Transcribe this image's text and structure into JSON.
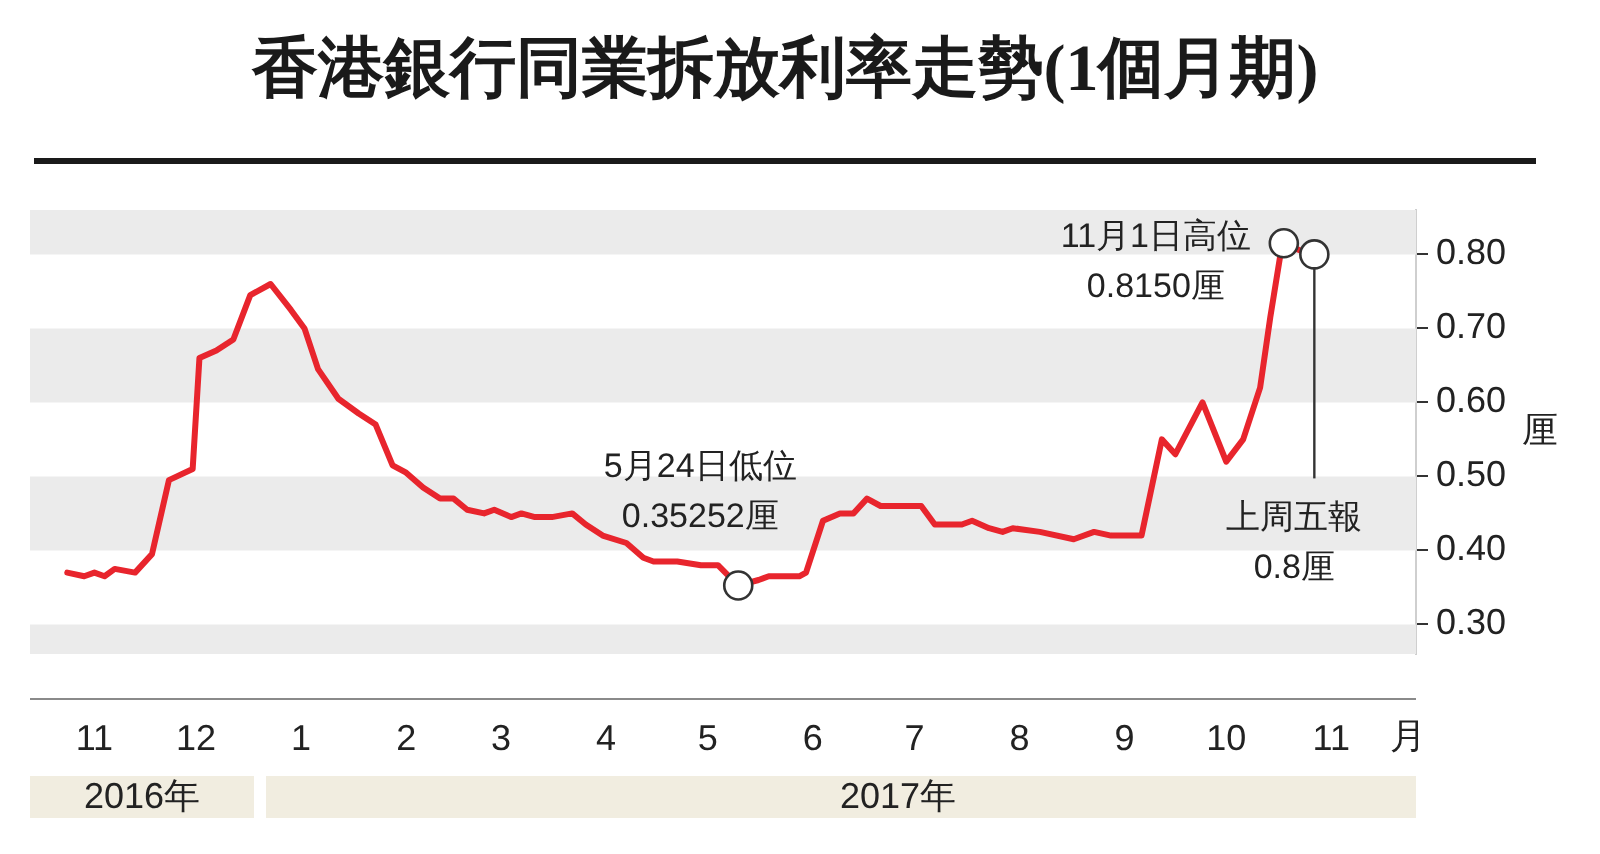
{
  "chart_data": {
    "type": "line",
    "title": "香港銀行同業拆放利率走勢(1個月期)",
    "xlabel": "月",
    "ylabel": "厘",
    "x": [
      "2016-11-07",
      "2016-11-12",
      "2016-11-15",
      "2016-11-18",
      "2016-11-21",
      "2016-11-27",
      "2016-12-02",
      "2016-12-07",
      "2016-12-14",
      "2016-12-16",
      "2016-12-21",
      "2016-12-26",
      "2016-12-31",
      "2017-01-06",
      "2017-01-12",
      "2017-01-16",
      "2017-01-20",
      "2017-01-26",
      "2017-02-01",
      "2017-02-06",
      "2017-02-11",
      "2017-02-15",
      "2017-02-20",
      "2017-02-25",
      "2017-03-01",
      "2017-03-05",
      "2017-03-10",
      "2017-03-13",
      "2017-03-18",
      "2017-03-21",
      "2017-03-25",
      "2017-03-30",
      "2017-04-05",
      "2017-04-09",
      "2017-04-14",
      "2017-04-21",
      "2017-04-26",
      "2017-04-29",
      "2017-05-06",
      "2017-05-13",
      "2017-05-18",
      "2017-05-24",
      "2017-05-26",
      "2017-05-30",
      "2017-06-02",
      "2017-06-11",
      "2017-06-13",
      "2017-06-18",
      "2017-06-23",
      "2017-06-27",
      "2017-07-01",
      "2017-07-05",
      "2017-07-17",
      "2017-07-21",
      "2017-07-29",
      "2017-08-01",
      "2017-08-06",
      "2017-08-10",
      "2017-08-13",
      "2017-08-21",
      "2017-08-31",
      "2017-09-06",
      "2017-09-11",
      "2017-09-20",
      "2017-09-26",
      "2017-09-30",
      "2017-10-08",
      "2017-10-15",
      "2017-10-20",
      "2017-10-25",
      "2017-10-28",
      "2017-10-31",
      "2017-11-01",
      "2017-11-06",
      "2017-11-10"
    ],
    "values": [
      0.37,
      0.365,
      0.37,
      0.365,
      0.375,
      0.37,
      0.395,
      0.495,
      0.51,
      0.66,
      0.67,
      0.685,
      0.745,
      0.76,
      0.725,
      0.7,
      0.645,
      0.605,
      0.585,
      0.57,
      0.515,
      0.505,
      0.485,
      0.47,
      0.47,
      0.455,
      0.45,
      0.455,
      0.445,
      0.45,
      0.445,
      0.445,
      0.45,
      0.435,
      0.42,
      0.41,
      0.39,
      0.385,
      0.385,
      0.38,
      0.38,
      0.35252,
      0.355,
      0.36,
      0.365,
      0.365,
      0.37,
      0.44,
      0.45,
      0.45,
      0.47,
      0.46,
      0.46,
      0.435,
      0.435,
      0.44,
      0.43,
      0.425,
      0.43,
      0.425,
      0.415,
      0.425,
      0.42,
      0.42,
      0.55,
      0.53,
      0.6,
      0.52,
      0.55,
      0.62,
      0.715,
      0.8,
      0.815,
      0.805,
      0.8
    ],
    "color": "#e8252d",
    "xlim": [
      "2016-10-27",
      "2017-12-10"
    ],
    "xticks": [
      {
        "value": "2016-11-15",
        "label": "11"
      },
      {
        "value": "2016-12-15",
        "label": "12"
      },
      {
        "value": "2017-01-15",
        "label": "1"
      },
      {
        "value": "2017-02-15",
        "label": "2"
      },
      {
        "value": "2017-03-15",
        "label": "3"
      },
      {
        "value": "2017-04-15",
        "label": "4"
      },
      {
        "value": "2017-05-15",
        "label": "5"
      },
      {
        "value": "2017-06-15",
        "label": "6"
      },
      {
        "value": "2017-07-15",
        "label": "7"
      },
      {
        "value": "2017-08-15",
        "label": "8"
      },
      {
        "value": "2017-09-15",
        "label": "9"
      },
      {
        "value": "2017-10-15",
        "label": "10"
      },
      {
        "value": "2017-11-15",
        "label": "11"
      }
    ],
    "ylim": [
      0.26,
      0.86
    ],
    "yticks": [
      {
        "value": 0.3,
        "label": "0.30"
      },
      {
        "value": 0.4,
        "label": "0.40"
      },
      {
        "value": 0.5,
        "label": "0.50"
      },
      {
        "value": 0.6,
        "label": "0.60"
      },
      {
        "value": 0.7,
        "label": "0.70"
      },
      {
        "value": 0.8,
        "label": "0.80"
      }
    ],
    "bands": [
      {
        "axis": "y",
        "from": 0.26,
        "to": 0.3,
        "color": "#ebebeb"
      },
      {
        "axis": "y",
        "from": 0.4,
        "to": 0.5,
        "color": "#ebebeb"
      },
      {
        "axis": "y",
        "from": 0.6,
        "to": 0.7,
        "color": "#ebebeb"
      },
      {
        "axis": "y",
        "from": 0.8,
        "to": 0.86,
        "color": "#ebebeb"
      }
    ],
    "annotations": [
      {
        "text": "5月24日低位\n0.35252厘",
        "x": "2017-05-24",
        "y": 0.35252
      },
      {
        "text": "11月1日高位\n0.8150厘",
        "x": "2017-11-01",
        "y": 0.815
      },
      {
        "text": "上周五報\n0.8厘",
        "x": "2017-11-10",
        "y": 0.8
      },
      "2016年",
      "2017年"
    ]
  }
}
